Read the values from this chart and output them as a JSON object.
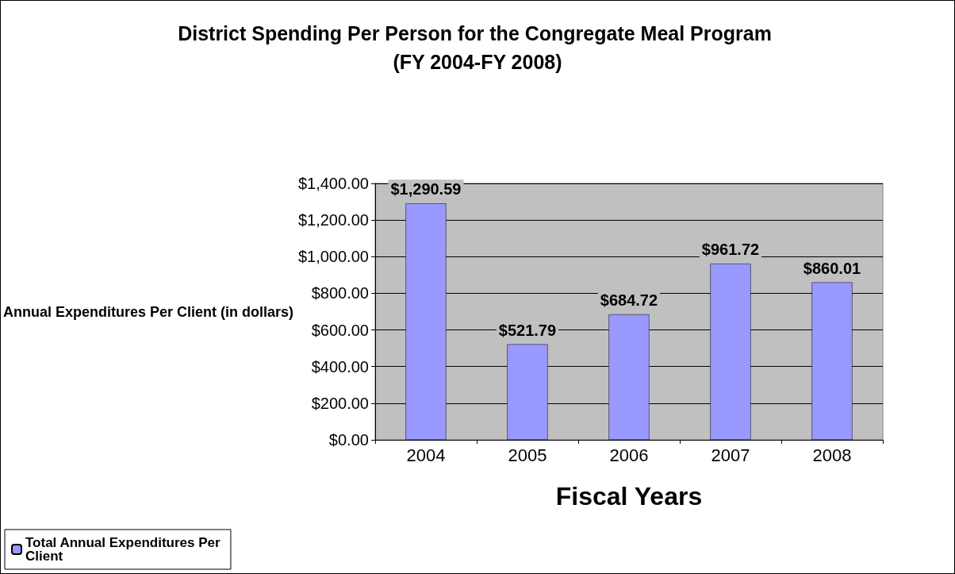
{
  "chart_data": {
    "type": "bar",
    "title": "District Spending Per Person for the Congregate Meal Program (FY 2004-FY 2008)",
    "xlabel": "Fiscal Years",
    "ylabel": "Annual Expenditures Per Client (in dollars)",
    "categories": [
      "2004",
      "2005",
      "2006",
      "2007",
      "2008"
    ],
    "series": [
      {
        "name": "Total Annual Expenditures Per Client",
        "color": "#9999ff",
        "values": [
          1290.59,
          521.79,
          684.72,
          961.72,
          860.01
        ],
        "value_labels": [
          "$1,290.59",
          "$521.79",
          "$684.72",
          "$961.72",
          "$860.01"
        ]
      }
    ],
    "ylim": [
      0,
      1400
    ],
    "yticks": [
      {
        "value": 0,
        "label": "$0.00"
      },
      {
        "value": 200,
        "label": "$200.00"
      },
      {
        "value": 400,
        "label": "$400.00"
      },
      {
        "value": 600,
        "label": "$600.00"
      },
      {
        "value": 800,
        "label": "$800.00"
      },
      {
        "value": 1000,
        "label": "$1,000.00"
      },
      {
        "value": 1200,
        "label": "$1,200.00"
      },
      {
        "value": 1400,
        "label": "$1,400.00"
      }
    ],
    "grid": "y",
    "legend": "bottom left"
  }
}
